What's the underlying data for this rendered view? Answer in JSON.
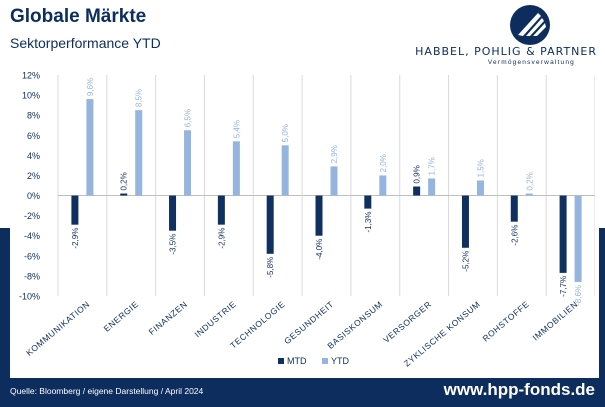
{
  "header": {
    "title": "Globale Märkte",
    "subtitle": "Sektorperformance YTD"
  },
  "brand": {
    "name": "HABBEL, POHLIG & PARTNER",
    "tagline": "Vermögensverwaltung",
    "logo_icon": "hpp-logo-icon"
  },
  "footer": {
    "source": "Quelle: Bloomberg / eigene Darstellung / April 2024",
    "website": "www.hpp-fonds.de"
  },
  "colors": {
    "navy": "#0c2d5e",
    "mtd": "#10305f",
    "ytd": "#95b4de"
  },
  "chart_data": {
    "type": "bar",
    "categories": [
      "KOMMUNIKATION",
      "ENERGIE",
      "FINANZEN",
      "INDUSTRIE",
      "TECHNOLOGIE",
      "GESUNDHEIT",
      "BASISKONSUM",
      "VERSORGER",
      "ZYKLISCHE KONSUM",
      "ROHSTOFFE",
      "IMMOBILIEN"
    ],
    "series": [
      {
        "name": "MTD",
        "values": [
          -2.9,
          0.2,
          -3.5,
          -2.9,
          -5.8,
          -4.0,
          -1.3,
          0.9,
          -5.2,
          -2.6,
          -7.7
        ],
        "labels": [
          "-2,9%",
          "0,2%",
          "-3,5%",
          "-2,9%",
          "-5,8%",
          "-4,0%",
          "-1,3%",
          "0,9%",
          "-5,2%",
          "-2,6%",
          "-7,7%"
        ]
      },
      {
        "name": "YTD",
        "values": [
          9.6,
          8.5,
          6.5,
          5.4,
          5.0,
          2.9,
          2.0,
          1.7,
          1.5,
          0.2,
          -8.6
        ],
        "labels": [
          "9,6%",
          "8,5%",
          "6,5%",
          "5,4%",
          "5,0%",
          "2,9%",
          "2,0%",
          "1,7%",
          "1,5%",
          "0,2%",
          "-8,6%"
        ]
      }
    ],
    "yticks": [
      12,
      10,
      8,
      6,
      4,
      2,
      0,
      -2,
      -4,
      -6,
      -8,
      -10
    ],
    "ytick_labels": [
      "12%",
      "10%",
      "8%",
      "6%",
      "4%",
      "2%",
      "0%",
      "-2%",
      "-4%",
      "-6%",
      "-8%",
      "-10%"
    ],
    "ylim": [
      -10,
      12
    ],
    "grid": "vertical",
    "legend": "bottom-center"
  }
}
